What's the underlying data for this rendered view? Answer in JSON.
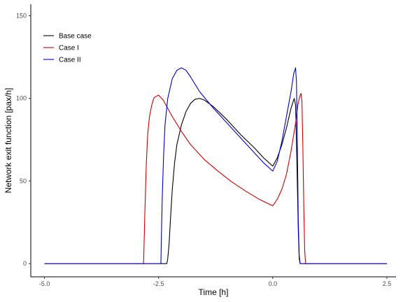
{
  "chart_data": {
    "type": "line",
    "title": "",
    "xlabel": "Time [h]",
    "ylabel": "Network exit function [pax/h]",
    "xlim": [
      -5.3,
      2.7
    ],
    "ylim": [
      -8,
      157
    ],
    "x_ticks": [
      {
        "value": -5.0,
        "label": "-5.0"
      },
      {
        "value": -2.5,
        "label": "-2.5"
      },
      {
        "value": 0.0,
        "label": "0.0"
      },
      {
        "value": 2.5,
        "label": "2.5"
      }
    ],
    "y_ticks": [
      {
        "value": 0,
        "label": "0"
      },
      {
        "value": 50,
        "label": "50"
      },
      {
        "value": 100,
        "label": "100"
      },
      {
        "value": 150,
        "label": "150"
      }
    ],
    "grid": false,
    "legend": {
      "position": "top-left"
    },
    "series": [
      {
        "name": "Base case",
        "color": "#000000",
        "points": [
          [
            -5.0,
            0
          ],
          [
            -2.32,
            0
          ],
          [
            -2.3,
            3
          ],
          [
            -2.27,
            12
          ],
          [
            -2.24,
            27
          ],
          [
            -2.2,
            45
          ],
          [
            -2.15,
            61
          ],
          [
            -2.1,
            72
          ],
          [
            -2.0,
            84
          ],
          [
            -1.9,
            92
          ],
          [
            -1.8,
            97
          ],
          [
            -1.7,
            99.5
          ],
          [
            -1.6,
            100
          ],
          [
            -1.5,
            99
          ],
          [
            -1.3,
            95
          ],
          [
            -1.0,
            87
          ],
          [
            -0.7,
            78
          ],
          [
            -0.4,
            70
          ],
          [
            -0.2,
            64
          ],
          [
            0.0,
            59
          ],
          [
            0.1,
            64
          ],
          [
            0.2,
            72
          ],
          [
            0.3,
            82
          ],
          [
            0.4,
            94
          ],
          [
            0.47,
            100
          ],
          [
            0.5,
            96
          ],
          [
            0.53,
            60
          ],
          [
            0.56,
            20
          ],
          [
            0.58,
            3
          ],
          [
            0.6,
            0
          ],
          [
            2.5,
            0
          ]
        ]
      },
      {
        "name": "Case I",
        "color": "#cc0000",
        "points": [
          [
            -5.0,
            0
          ],
          [
            -2.83,
            0
          ],
          [
            -2.82,
            10
          ],
          [
            -2.8,
            32
          ],
          [
            -2.77,
            60
          ],
          [
            -2.74,
            78
          ],
          [
            -2.7,
            89
          ],
          [
            -2.65,
            96
          ],
          [
            -2.6,
            100.5
          ],
          [
            -2.5,
            102
          ],
          [
            -2.4,
            99
          ],
          [
            -2.2,
            89
          ],
          [
            -2.0,
            80
          ],
          [
            -1.8,
            72
          ],
          [
            -1.5,
            63
          ],
          [
            -1.2,
            56
          ],
          [
            -0.9,
            49.5
          ],
          [
            -0.6,
            44
          ],
          [
            -0.3,
            39
          ],
          [
            0.0,
            35
          ],
          [
            0.1,
            39
          ],
          [
            0.2,
            45
          ],
          [
            0.3,
            54
          ],
          [
            0.4,
            68
          ],
          [
            0.5,
            85
          ],
          [
            0.55,
            96
          ],
          [
            0.6,
            102
          ],
          [
            0.62,
            103
          ],
          [
            0.64,
            98
          ],
          [
            0.66,
            70
          ],
          [
            0.68,
            35
          ],
          [
            0.7,
            8
          ],
          [
            0.72,
            0
          ],
          [
            2.5,
            0
          ]
        ]
      },
      {
        "name": "Case II",
        "color": "#0000cc",
        "points": [
          [
            -5.0,
            0
          ],
          [
            -2.45,
            0
          ],
          [
            -2.44,
            15
          ],
          [
            -2.42,
            40
          ],
          [
            -2.39,
            66
          ],
          [
            -2.36,
            84
          ],
          [
            -2.3,
            100
          ],
          [
            -2.2,
            112
          ],
          [
            -2.1,
            117
          ],
          [
            -2.0,
            118.5
          ],
          [
            -1.9,
            117
          ],
          [
            -1.8,
            113
          ],
          [
            -1.6,
            104
          ],
          [
            -1.3,
            94
          ],
          [
            -1.0,
            85
          ],
          [
            -0.7,
            76
          ],
          [
            -0.4,
            67
          ],
          [
            -0.2,
            61
          ],
          [
            0.0,
            56
          ],
          [
            0.1,
            62
          ],
          [
            0.2,
            74
          ],
          [
            0.3,
            89
          ],
          [
            0.4,
            104
          ],
          [
            0.46,
            115
          ],
          [
            0.5,
            118.5
          ],
          [
            0.52,
            110
          ],
          [
            0.54,
            70
          ],
          [
            0.56,
            25
          ],
          [
            0.58,
            5
          ],
          [
            0.6,
            0
          ],
          [
            2.5,
            0
          ]
        ]
      }
    ]
  }
}
